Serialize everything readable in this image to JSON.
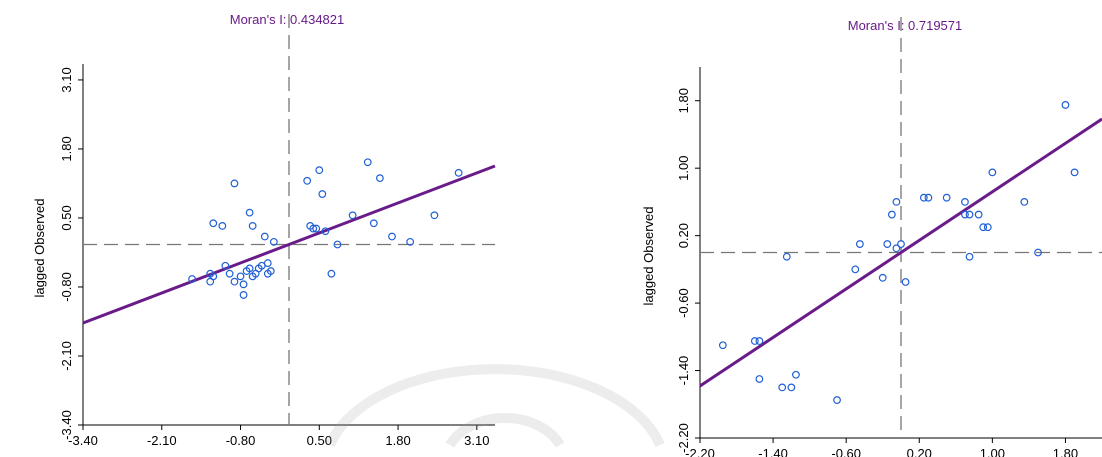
{
  "chart_data": [
    {
      "type": "scatter",
      "title": "Moran's I: 0.434821",
      "ylabel": "lagged Observed",
      "xlabel": "",
      "xlim": [
        -3.4,
        3.4
      ],
      "ylim": [
        -3.4,
        3.4
      ],
      "xticks": [
        "-3.40",
        "-2.10",
        "-0.80",
        "0.50",
        "1.80",
        "3.10"
      ],
      "yticks": [
        "3.10",
        "1.80",
        "0.50",
        "-0.80",
        "-2.10",
        "-3.40"
      ],
      "xtick_values": [
        -3.4,
        -2.1,
        -0.8,
        0.5,
        1.8,
        3.1
      ],
      "ytick_values": [
        3.1,
        1.8,
        0.5,
        -0.8,
        -2.1,
        -3.4
      ],
      "vline": 0.0,
      "hline": 0.0,
      "regression": {
        "slope": 0.434821,
        "intercept": 0.0,
        "color": "#6a1b8a"
      },
      "point_color": "#1f5fd6",
      "x": [
        -1.6,
        -1.3,
        -1.25,
        -1.1,
        -1.05,
        -0.98,
        -0.9,
        -0.8,
        -0.75,
        -0.7,
        -0.65,
        -0.6,
        -0.55,
        -0.5,
        -0.45,
        -0.4,
        -0.35,
        -0.3,
        -0.25,
        -0.9,
        -0.75,
        -0.35,
        0.3,
        0.35,
        0.4,
        0.45,
        0.5,
        0.55,
        0.6,
        0.7,
        0.8,
        1.05,
        1.3,
        1.4,
        1.5,
        1.7,
        2.0,
        2.4,
        2.8,
        -1.3,
        -1.25,
        -0.6,
        -0.65
      ],
      "y": [
        -0.65,
        -0.55,
        0.4,
        0.35,
        -0.4,
        -0.55,
        -0.7,
        -0.6,
        -0.75,
        -0.5,
        -0.45,
        -0.6,
        -0.55,
        -0.45,
        -0.4,
        0.15,
        -0.55,
        -0.5,
        0.05,
        1.15,
        -0.95,
        -0.35,
        1.2,
        0.35,
        0.3,
        0.3,
        1.4,
        0.95,
        0.25,
        -0.55,
        0.0,
        0.55,
        1.55,
        0.4,
        1.25,
        0.15,
        0.05,
        0.55,
        1.35,
        -0.7,
        -0.6,
        0.35,
        0.6
      ]
    },
    {
      "type": "scatter",
      "title": "Moran's I: 0.719571",
      "ylabel": "lagged Observed",
      "xlabel": "",
      "xlim": [
        -2.2,
        2.2
      ],
      "ylim": [
        -2.2,
        2.2
      ],
      "xticks": [
        "-2.20",
        "-1.40",
        "-0.60",
        "0.20",
        "1.00",
        "1.80"
      ],
      "yticks": [
        "1.80",
        "1.00",
        "0.20",
        "-0.60",
        "-1.40",
        "-2.20"
      ],
      "xtick_values": [
        -2.2,
        -1.4,
        -0.6,
        0.2,
        1.0,
        1.8
      ],
      "ytick_values": [
        1.8,
        1.0,
        0.2,
        -0.6,
        -1.4,
        -2.2
      ],
      "vline": 0.0,
      "hline": 0.0,
      "regression": {
        "slope": 0.719571,
        "intercept": 0.0,
        "color": "#6a1b8a"
      },
      "point_color": "#1f5fd6",
      "x": [
        -1.95,
        -1.6,
        -1.55,
        -1.55,
        -1.3,
        -1.25,
        -1.15,
        -1.2,
        -0.7,
        -0.5,
        -0.45,
        -0.2,
        -0.1,
        -0.05,
        0.0,
        0.05,
        -0.05,
        -0.15,
        0.25,
        0.3,
        0.5,
        0.7,
        0.75,
        0.85,
        0.9,
        0.95,
        0.75,
        1.0,
        1.35,
        1.5,
        1.8,
        1.9,
        0.7
      ],
      "y": [
        -1.1,
        -1.05,
        -1.5,
        -1.05,
        -1.6,
        -0.05,
        -1.45,
        -1.6,
        -1.75,
        -0.2,
        0.1,
        -0.3,
        0.45,
        0.6,
        0.1,
        -0.35,
        0.05,
        0.1,
        0.65,
        0.65,
        0.65,
        0.6,
        0.45,
        0.45,
        0.3,
        0.3,
        -0.05,
        0.95,
        0.6,
        0.0,
        1.75,
        0.95,
        0.45
      ]
    }
  ]
}
